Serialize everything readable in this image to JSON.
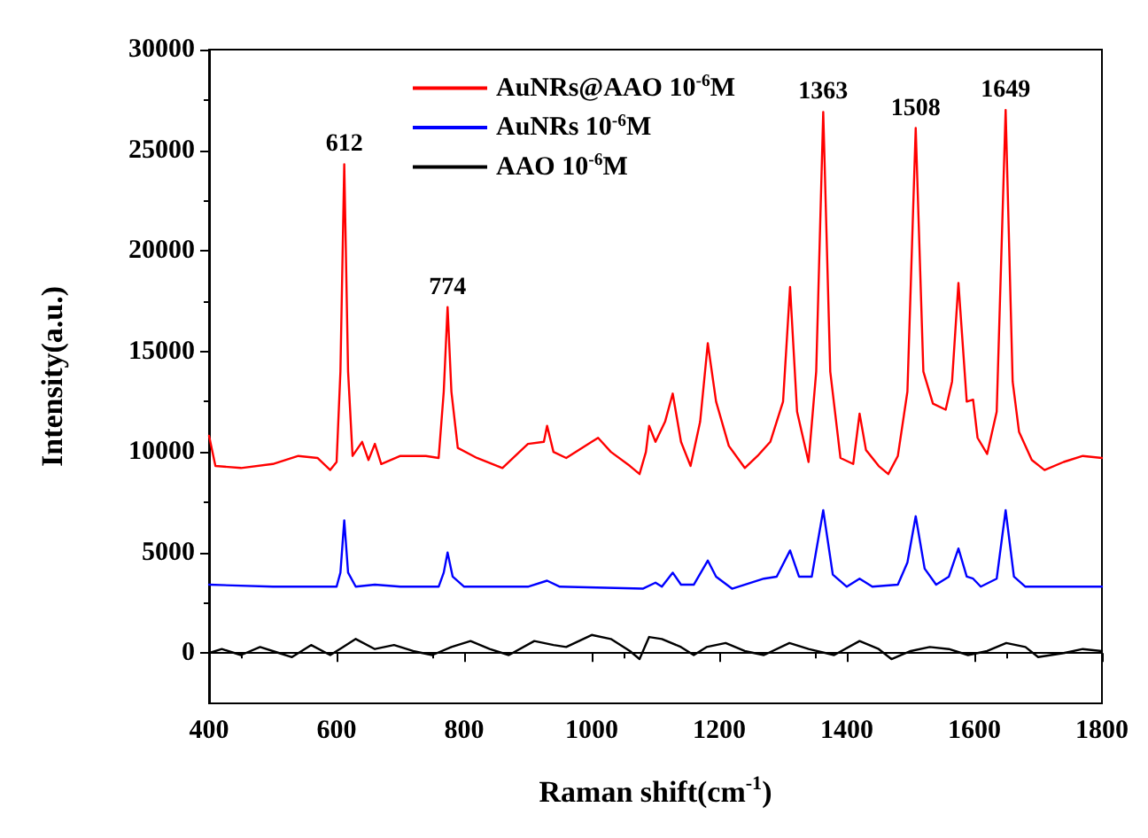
{
  "chart_data": {
    "type": "line",
    "xlabel": "Raman shift(cm$^{-1}$)",
    "ylabel": "Intensity(a.u.)",
    "xlim": [
      400,
      1800
    ],
    "xticks": [
      400,
      600,
      800,
      1000,
      1200,
      1400,
      1600,
      1800
    ],
    "ylim": [
      -2500,
      30000
    ],
    "yticks": [
      0,
      5000,
      10000,
      15000,
      20000,
      25000,
      30000
    ],
    "legend": "top",
    "marker": "none",
    "line_style": "solid",
    "annotations": [
      {
        "text": "612",
        "x": 612,
        "y": 24300
      },
      {
        "text": "774",
        "x": 774,
        "y": 17200
      },
      {
        "text": "1363",
        "x": 1363,
        "y": 26900
      },
      {
        "text": "1508",
        "x": 1508,
        "y": 26100
      },
      {
        "text": "1649",
        "x": 1649,
        "y": 27000
      }
    ],
    "series": [
      {
        "name": "AuNRs@AAO 10$^{-6}$M",
        "color": "#ff0000",
        "x": [
          400,
          410,
          450,
          500,
          540,
          570,
          590,
          600,
          606,
          612,
          618,
          625,
          640,
          650,
          660,
          670,
          700,
          740,
          760,
          768,
          774,
          780,
          790,
          820,
          860,
          900,
          925,
          930,
          940,
          960,
          1000,
          1010,
          1030,
          1060,
          1075,
          1085,
          1090,
          1100,
          1115,
          1127,
          1140,
          1155,
          1170,
          1182,
          1195,
          1215,
          1240,
          1260,
          1280,
          1300,
          1311,
          1322,
          1340,
          1352,
          1363,
          1374,
          1390,
          1410,
          1420,
          1430,
          1450,
          1465,
          1480,
          1495,
          1508,
          1520,
          1535,
          1555,
          1565,
          1575,
          1588,
          1598,
          1605,
          1620,
          1635,
          1649,
          1660,
          1670,
          1690,
          1710,
          1740,
          1770,
          1800
        ],
        "values": [
          10800,
          9300,
          9200,
          9400,
          9800,
          9700,
          9100,
          9500,
          14000,
          24300,
          14000,
          9800,
          10500,
          9600,
          10400,
          9400,
          9800,
          9800,
          9700,
          13000,
          17200,
          13000,
          10200,
          9700,
          9200,
          10400,
          10500,
          11300,
          10000,
          9700,
          10500,
          10700,
          10000,
          9300,
          8900,
          10000,
          11300,
          10500,
          11500,
          12900,
          10500,
          9300,
          11500,
          15400,
          12500,
          10300,
          9200,
          9800,
          10500,
          12500,
          18200,
          12000,
          9500,
          14000,
          26900,
          14000,
          9700,
          9400,
          11900,
          10100,
          9300,
          8900,
          9800,
          13000,
          26100,
          14000,
          12400,
          12100,
          13500,
          18400,
          12500,
          12600,
          10700,
          9900,
          12000,
          27000,
          13500,
          11000,
          9600,
          9100,
          9500,
          9800,
          9700
        ]
      },
      {
        "name": "AuNRs 10$^{-6}$M",
        "color": "#0000ff",
        "x": [
          400,
          500,
          600,
          606,
          612,
          618,
          630,
          660,
          700,
          760,
          768,
          774,
          782,
          800,
          900,
          930,
          950,
          1080,
          1100,
          1110,
          1127,
          1140,
          1160,
          1182,
          1195,
          1220,
          1270,
          1290,
          1311,
          1325,
          1345,
          1363,
          1378,
          1400,
          1420,
          1440,
          1480,
          1495,
          1508,
          1522,
          1540,
          1560,
          1575,
          1588,
          1598,
          1610,
          1635,
          1649,
          1662,
          1680,
          1800
        ],
        "values": [
          3400,
          3300,
          3300,
          4000,
          6600,
          4000,
          3300,
          3400,
          3300,
          3300,
          4000,
          5000,
          3800,
          3300,
          3300,
          3600,
          3300,
          3200,
          3500,
          3300,
          4000,
          3400,
          3400,
          4600,
          3800,
          3200,
          3700,
          3800,
          5100,
          3800,
          3800,
          7100,
          3900,
          3300,
          3700,
          3300,
          3400,
          4500,
          6800,
          4200,
          3400,
          3800,
          5200,
          3800,
          3700,
          3300,
          3700,
          7100,
          3800,
          3300,
          3300
        ]
      },
      {
        "name": "AAO 10$^{-6}$M",
        "color": "#000000",
        "x": [
          400,
          420,
          450,
          480,
          510,
          530,
          560,
          590,
          610,
          630,
          660,
          690,
          720,
          750,
          780,
          810,
          840,
          870,
          910,
          940,
          960,
          1000,
          1030,
          1060,
          1075,
          1090,
          1110,
          1140,
          1160,
          1180,
          1210,
          1240,
          1270,
          1310,
          1340,
          1380,
          1420,
          1450,
          1470,
          1500,
          1530,
          1560,
          1590,
          1620,
          1650,
          1680,
          1700,
          1740,
          1770,
          1800
        ],
        "values": [
          0,
          200,
          -100,
          300,
          0,
          -200,
          400,
          -100,
          300,
          700,
          200,
          400,
          100,
          -100,
          300,
          600,
          200,
          -100,
          600,
          400,
          300,
          900,
          700,
          100,
          -300,
          800,
          700,
          300,
          -100,
          300,
          500,
          100,
          -100,
          500,
          200,
          -100,
          600,
          200,
          -300,
          100,
          300,
          200,
          -100,
          100,
          500,
          300,
          -200,
          0,
          200,
          100
        ]
      }
    ]
  }
}
